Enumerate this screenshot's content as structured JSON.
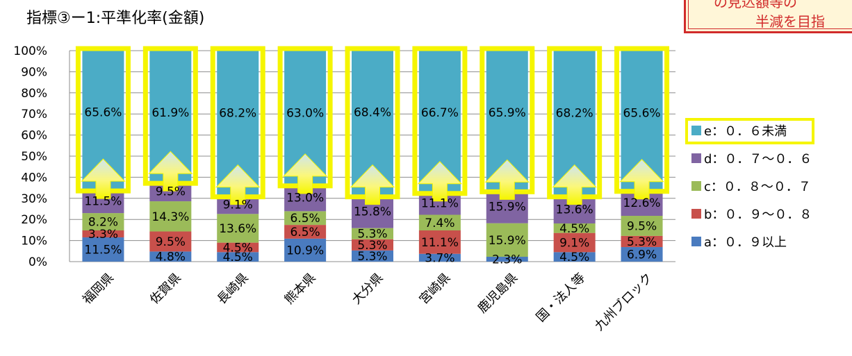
{
  "title": "指標③ー1:平準化率(金額)",
  "callout": {
    "line1": "の見込額等の",
    "line2": "半減を目指"
  },
  "colors": {
    "a": "#4a7bbf",
    "b": "#c8504b",
    "c": "#9bbb59",
    "d": "#8064a2",
    "e": "#4bacc6",
    "highlight": "#f5f500"
  },
  "icons": {
    "arrow": "up-arrow-icon"
  },
  "chart_data": {
    "type": "bar",
    "stacked": true,
    "categories": [
      "福岡県",
      "佐賀県",
      "長崎県",
      "熊本県",
      "大分県",
      "宮崎県",
      "鹿児島県",
      "国・法人等",
      "九州ブロック"
    ],
    "ylim": [
      0,
      100
    ],
    "yticks": [
      "0%",
      "10%",
      "20%",
      "30%",
      "40%",
      "50%",
      "60%",
      "70%",
      "80%",
      "90%",
      "100%"
    ],
    "series": [
      {
        "key": "a",
        "name": "a：０．９以上",
        "values": [
          11.5,
          4.8,
          4.5,
          10.9,
          5.3,
          3.7,
          2.3,
          4.5,
          6.9
        ],
        "labels": [
          "11.5%",
          "4.8%",
          "4.5%",
          "10.9%",
          "5.3%",
          "3.7%",
          "2.3%",
          "4.5%",
          "6.9%"
        ]
      },
      {
        "key": "b",
        "name": "b：０．９～０．８",
        "values": [
          3.3,
          9.5,
          4.5,
          6.5,
          5.3,
          11.1,
          0.0,
          9.1,
          5.3
        ],
        "labels": [
          "3.3%",
          "9.5%",
          "4.5%",
          "6.5%",
          "5.3%",
          "11.1%",
          "",
          "9.1%",
          "5.3%"
        ]
      },
      {
        "key": "c",
        "name": "c：０．８～０．７",
        "values": [
          8.2,
          14.3,
          13.6,
          6.5,
          5.3,
          7.4,
          15.9,
          4.5,
          9.5
        ],
        "labels": [
          "8.2%",
          "14.3%",
          "13.6%",
          "6.5%",
          "5.3%",
          "7.4%",
          "15.9%",
          "4.5%",
          "9.5%"
        ]
      },
      {
        "key": "d",
        "name": "d：０．７～０．６",
        "values": [
          11.5,
          9.5,
          9.1,
          13.0,
          15.8,
          11.1,
          15.9,
          13.6,
          12.6
        ],
        "labels": [
          "11.5%",
          "9.5%",
          "9.1%",
          "13.0%",
          "15.8%",
          "11.1%",
          "15.9%",
          "13.6%",
          "12.6%"
        ]
      },
      {
        "key": "e",
        "name": "e：０．６未満",
        "values": [
          65.6,
          61.9,
          68.2,
          63.0,
          68.4,
          66.7,
          65.9,
          68.2,
          65.6
        ],
        "labels": [
          "65.6%",
          "61.9%",
          "68.2%",
          "63.0%",
          "68.4%",
          "66.7%",
          "65.9%",
          "68.2%",
          "65.6%"
        ]
      }
    ],
    "legend_order": [
      "e",
      "d",
      "c",
      "b",
      "a"
    ],
    "legend_position": "right",
    "grid": true
  }
}
